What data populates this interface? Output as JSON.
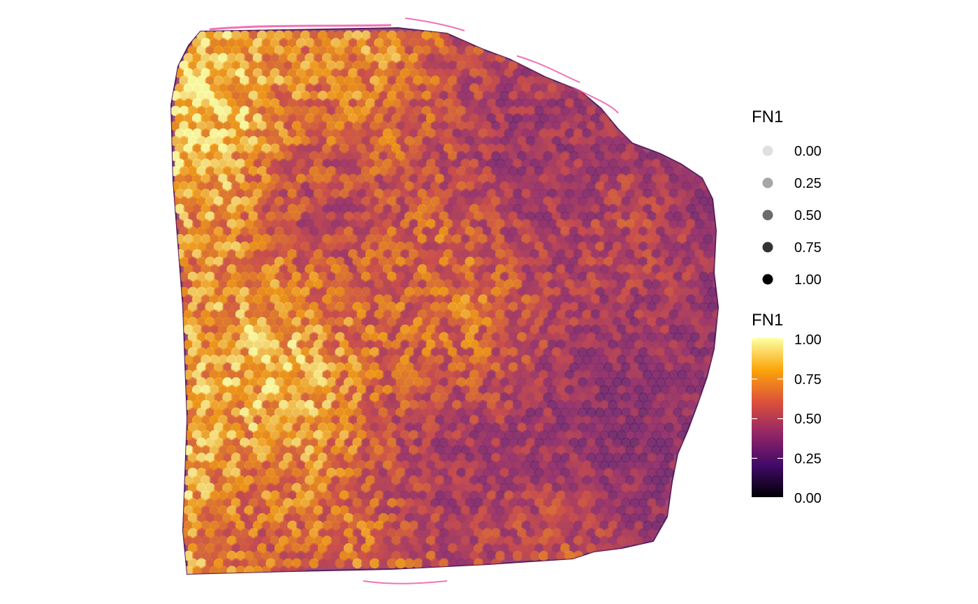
{
  "chart_data": {
    "type": "scatter",
    "subtype": "spatial-spot-map",
    "title": "",
    "xlabel": "",
    "ylabel": "",
    "feature": "FN1",
    "colormap": "inferno",
    "background": "H&E tissue image",
    "grid": false,
    "legend_position": "right",
    "legends": [
      {
        "kind": "alpha",
        "title": "FN1",
        "breaks": [
          "0.00",
          "0.25",
          "0.50",
          "0.75",
          "1.00"
        ],
        "alpha_values": [
          0.12,
          0.35,
          0.58,
          0.8,
          1.0
        ]
      },
      {
        "kind": "colorbar",
        "title": "FN1",
        "breaks": [
          "1.00",
          "0.75",
          "0.50",
          "0.25",
          "0.00"
        ],
        "range": [
          0,
          1
        ],
        "colors": [
          "#000004",
          "#420a68",
          "#932667",
          "#dd513a",
          "#fca50a",
          "#fcffa4"
        ]
      }
    ],
    "value_range": [
      0,
      1
    ],
    "approx_spot_count": 3500
  }
}
